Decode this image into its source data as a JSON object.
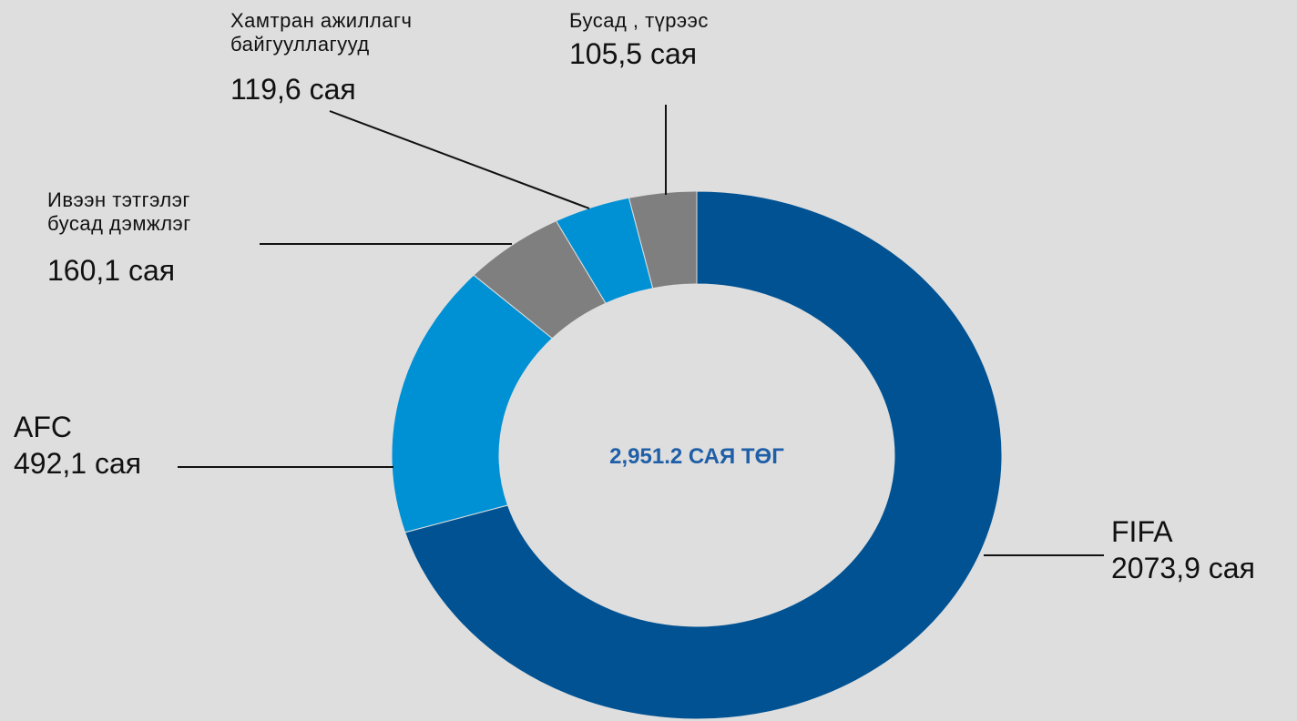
{
  "chart_data": {
    "type": "donut",
    "center_label": "2,951.2 САЯ ТӨГ",
    "categories": [
      "FIFA",
      "AFC",
      "Ивээн тэтгэлэг\nбусад дэмжлэг",
      "Хамтран ажиллагч\nбайгууллагууд",
      "Бусад , түрээс"
    ],
    "values": [
      2073.9,
      492.1,
      160.1,
      119.6,
      105.5
    ],
    "value_labels": [
      "2073,9 сая",
      "492,1 сая",
      "160,1 сая",
      "119,6 сая",
      "105,5 сая"
    ],
    "colors": [
      "#005293",
      "#0091d5",
      "#7f7f7f",
      "#0091d5",
      "#7f7f7f"
    ]
  }
}
